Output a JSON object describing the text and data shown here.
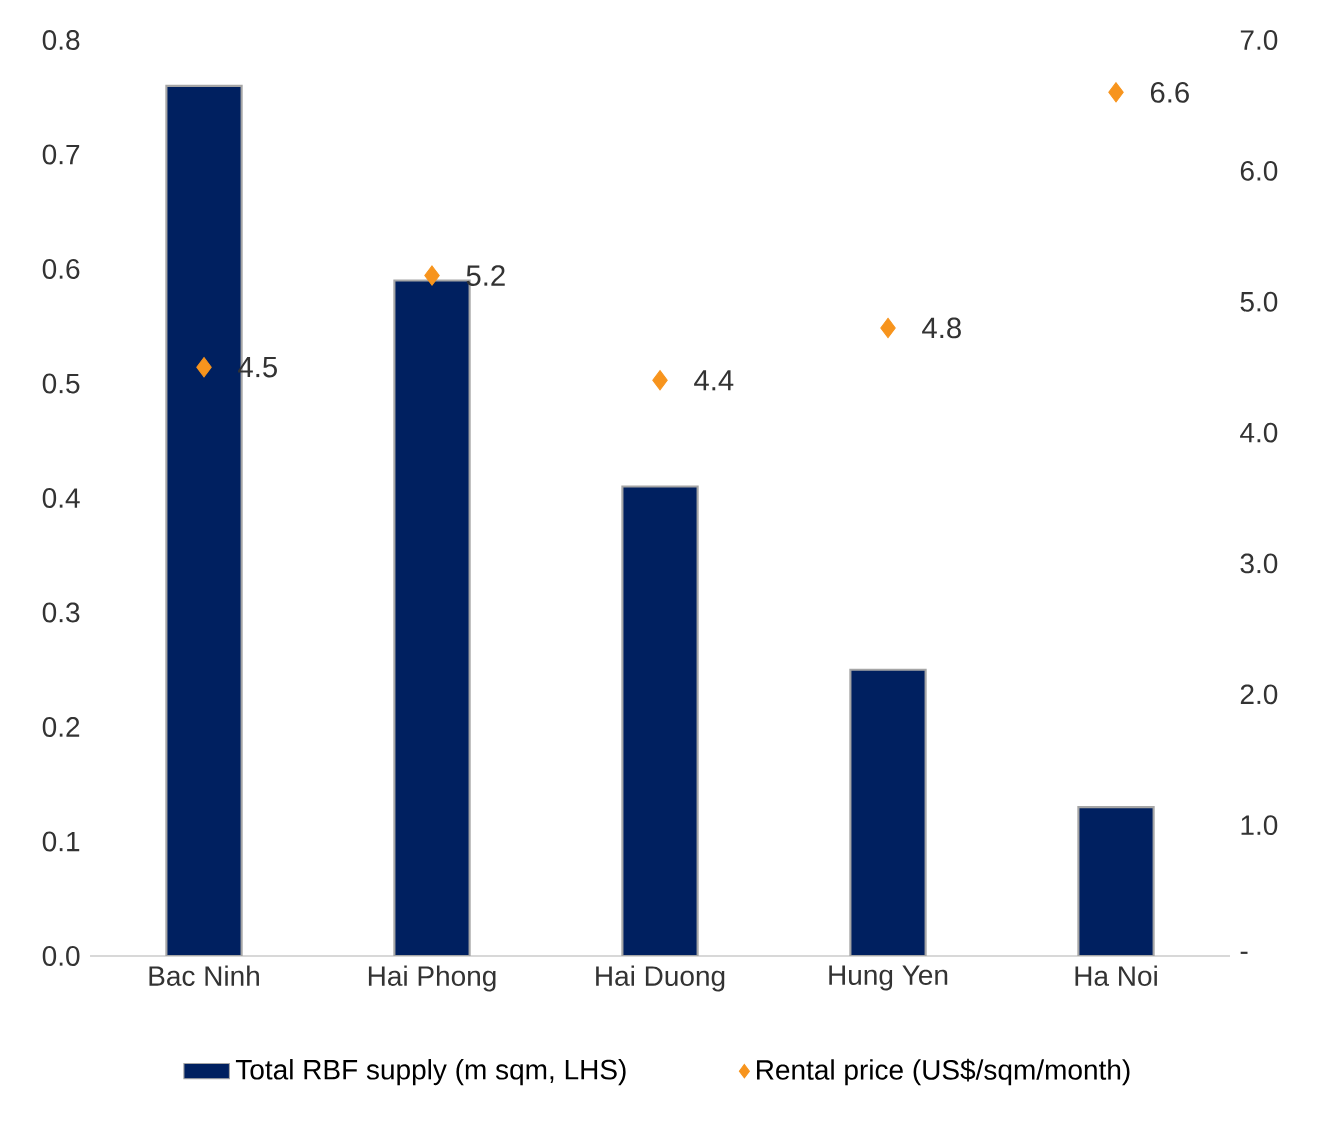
{
  "chart_data": {
    "type": "bar",
    "categories": [
      "Bac Ninh",
      "Hai Phong",
      "Hai Duong",
      "Hung Yen",
      "Ha Noi"
    ],
    "series": [
      {
        "name": "Total RBF supply (m sqm, LHS)",
        "color": "#002060",
        "values": [
          0.76,
          0.59,
          0.41,
          0.25,
          0.13
        ]
      },
      {
        "name": "Rental price (US$/sqm/month)",
        "type": "scatter",
        "axis": "y2",
        "color": "#f7941d",
        "marker": "diamond",
        "values": [
          4.5,
          5.2,
          4.4,
          4.8,
          6.6
        ],
        "value_labels": [
          "4.5",
          "5.2",
          "4.4",
          "4.8",
          "6.6"
        ]
      }
    ],
    "ylim": [
      0,
      0.8
    ],
    "yticks": [
      {
        "value": 0,
        "label": "0.0"
      },
      0.1,
      0.2,
      0.3,
      0.4,
      0.5,
      0.6,
      0.7,
      0.8
    ],
    "y2lim": [
      0,
      7
    ],
    "y2ticks": [
      {
        "value": 0,
        "label": "-"
      },
      {
        "value": 1,
        "label": "1.0"
      },
      {
        "value": 2,
        "label": "2.0"
      },
      {
        "value": 3,
        "label": "3.0"
      },
      {
        "value": 4,
        "label": "4.0"
      },
      {
        "value": 5,
        "label": "5.0"
      },
      {
        "value": 6,
        "label": "6.0"
      },
      {
        "value": 7,
        "label": "7.0"
      }
    ],
    "grid": false,
    "legend": "bottom"
  }
}
